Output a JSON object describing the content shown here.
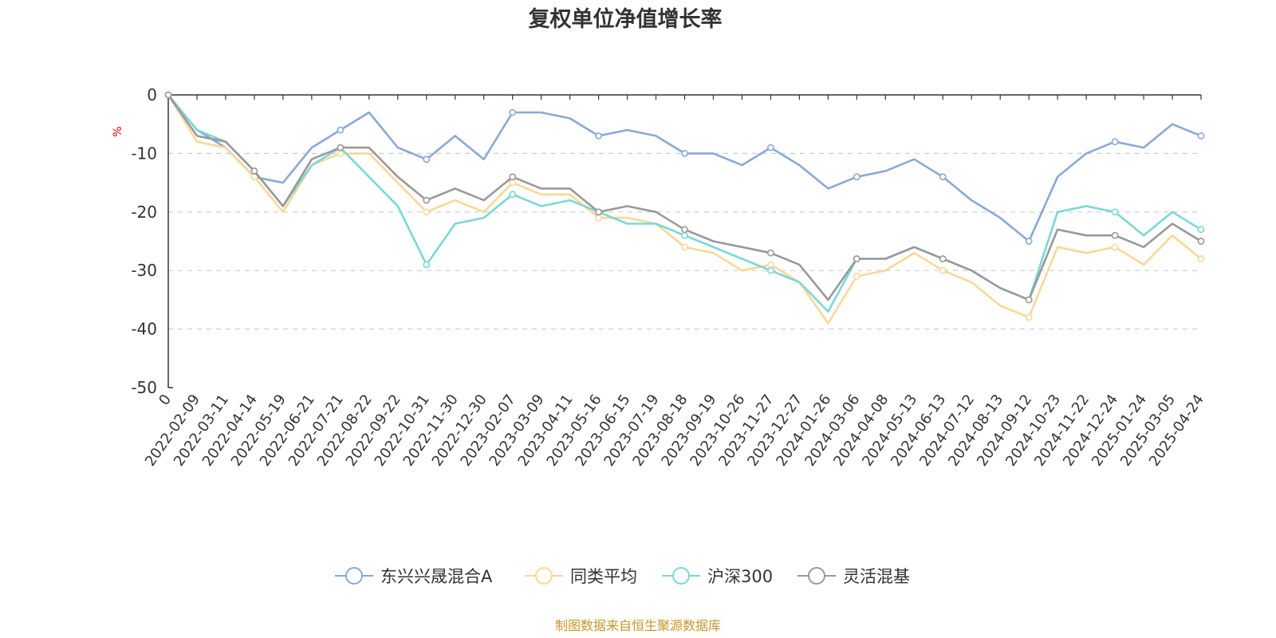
{
  "chart_data": {
    "type": "line",
    "title": "复权单位净值增长率",
    "ylabel": "%",
    "ylim": [
      -50,
      0
    ],
    "yticks": [
      0,
      -10,
      -20,
      -30,
      -40,
      -50
    ],
    "grid": true,
    "legend_position": "bottom-center",
    "x_first": "0",
    "xticks": [
      "0",
      "2022-02-09",
      "2022-03-11",
      "2022-04-14",
      "2022-05-19",
      "2022-06-21",
      "2022-07-21",
      "2022-08-22",
      "2022-09-22",
      "2022-10-31",
      "2022-11-30",
      "2022-12-30",
      "2023-02-07",
      "2023-03-09",
      "2023-04-11",
      "2023-05-16",
      "2023-06-15",
      "2023-07-19",
      "2023-08-18",
      "2023-09-19",
      "2023-10-26",
      "2023-11-27",
      "2023-12-27",
      "2024-01-26",
      "2024-03-06",
      "2024-04-08",
      "2024-05-13",
      "2024-06-13",
      "2024-07-12",
      "2024-08-13",
      "2024-09-12",
      "2024-10-23",
      "2024-11-22",
      "2024-12-24",
      "2025-01-24",
      "2025-03-05",
      "2025-04-24"
    ],
    "x": [
      "0",
      "2022-02-09",
      "2022-03-11",
      "2022-04-14",
      "2022-05-19",
      "2022-06-21",
      "2022-07-21",
      "2022-08-22",
      "2022-09-22",
      "2022-10-31",
      "2022-11-30",
      "2022-12-30",
      "2023-02-07",
      "2023-03-09",
      "2023-04-11",
      "2023-05-16",
      "2023-06-15",
      "2023-07-19",
      "2023-08-18",
      "2023-09-19",
      "2023-10-26",
      "2023-11-27",
      "2023-12-27",
      "2024-01-26",
      "2024-03-06",
      "2024-04-08",
      "2024-05-13",
      "2024-06-13",
      "2024-07-12",
      "2024-08-13",
      "2024-09-12",
      "2024-10-23",
      "2024-11-22",
      "2024-12-24",
      "2025-01-24",
      "2025-03-05",
      "2025-04-24"
    ],
    "series": [
      {
        "name": "东兴兴晟混合A",
        "color": "#8aa8d8",
        "values": [
          0,
          -6,
          -9,
          -14,
          -15,
          -9,
          -6,
          -3,
          -9,
          -11,
          -7,
          -11,
          -3,
          -3,
          -4,
          -7,
          -6,
          -7,
          -10,
          -10,
          -12,
          -9,
          -12,
          -16,
          -14,
          -13,
          -11,
          -14,
          -18,
          -21,
          -25,
          -14,
          -10,
          -8,
          -9,
          -5,
          -7
        ]
      },
      {
        "name": "同类平均",
        "color": "#fad797",
        "values": [
          0,
          -8,
          -9,
          -14,
          -20,
          -12,
          -10,
          -10,
          -15,
          -20,
          -18,
          -20,
          -15,
          -17,
          -17,
          -21,
          -21,
          -22,
          -26,
          -27,
          -30,
          -29,
          -32,
          -39,
          -31,
          -30,
          -27,
          -30,
          -32,
          -36,
          -38,
          -26,
          -27,
          -26,
          -29,
          -24,
          -28
        ]
      },
      {
        "name": "沪深300",
        "color": "#7ad8d8",
        "values": [
          0,
          -6,
          -8,
          -13,
          -19,
          -12,
          -9,
          -14,
          -19,
          -29,
          -22,
          -21,
          -17,
          -19,
          -18,
          -20,
          -22,
          -22,
          -24,
          -26,
          -28,
          -30,
          -32,
          -37,
          -28,
          -28,
          -26,
          -28,
          -30,
          -33,
          -35,
          -20,
          -19,
          -20,
          -24,
          -20,
          -23
        ]
      },
      {
        "name": "灵活混基",
        "color": "#999999",
        "values": [
          0,
          -7,
          -8,
          -13,
          -19,
          -11,
          -9,
          -9,
          -14,
          -18,
          -16,
          -18,
          -14,
          -16,
          -16,
          -20,
          -19,
          -20,
          -23,
          -25,
          -26,
          -27,
          -29,
          -35,
          -28,
          -28,
          -26,
          -28,
          -30,
          -33,
          -35,
          -23,
          -24,
          -24,
          -26,
          -22,
          -25
        ]
      }
    ]
  },
  "source_note": "制图数据来自恒生聚源数据库"
}
